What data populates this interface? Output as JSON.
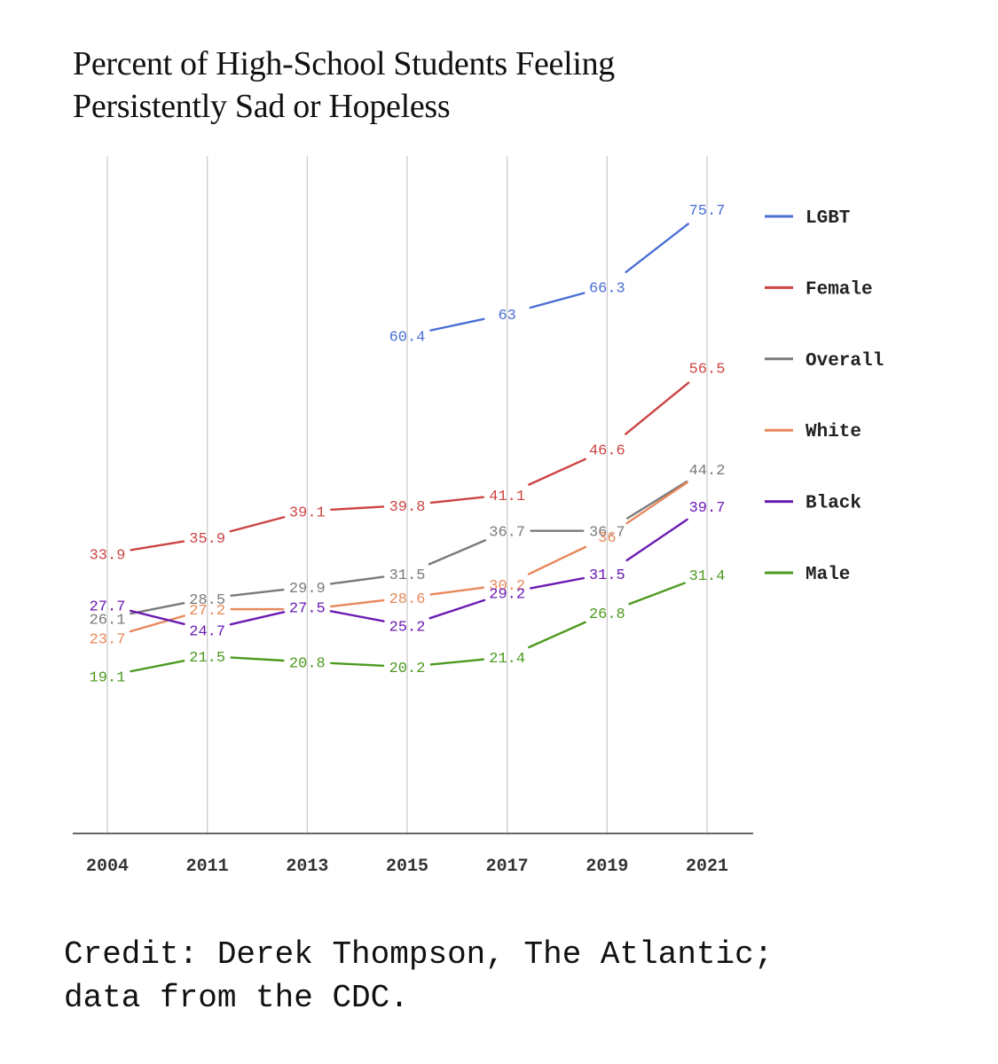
{
  "chart_data": {
    "type": "line",
    "title": [
      "Percent of High-School Students Feeling",
      "Persistently Sad or Hopeless"
    ],
    "xlabel": "",
    "ylabel": "",
    "categories": [
      "2004",
      "2011",
      "2013",
      "2015",
      "2017",
      "2019",
      "2021"
    ],
    "ylim": [
      0,
      80
    ],
    "grid": "vertical",
    "legend_position": "right",
    "series": [
      {
        "name": "LGBT",
        "color": "#4a6fd6",
        "values": [
          null,
          null,
          null,
          60.4,
          63,
          66.3,
          75.7
        ],
        "labels": [
          null,
          null,
          null,
          "60.4",
          "63",
          "66.3",
          "75.7"
        ]
      },
      {
        "name": "Female",
        "color": "#cc4444",
        "values": [
          33.9,
          35.9,
          39.1,
          39.8,
          41.1,
          46.6,
          56.5
        ],
        "labels": [
          "33.9",
          "35.9",
          "39.1",
          "39.8",
          "41.1",
          "46.6",
          "56.5"
        ]
      },
      {
        "name": "Overall",
        "color": "#7a7a7a",
        "values": [
          26.1,
          28.5,
          29.9,
          31.5,
          36.7,
          36.7,
          44.2
        ],
        "labels": [
          "26.1",
          "28.5",
          "29.9",
          "31.5",
          "36.7",
          "36.7",
          "44.2"
        ]
      },
      {
        "name": "White",
        "color": "#e8875a",
        "values": [
          23.7,
          27.2,
          27.2,
          28.6,
          30.2,
          36,
          44.2
        ],
        "labels": [
          "23.7",
          "27.2",
          null,
          "28.6",
          "30.2",
          "36",
          null
        ]
      },
      {
        "name": "Black",
        "color": "#6a1bb3",
        "values": [
          27.7,
          24.7,
          27.5,
          25.2,
          29.2,
          31.5,
          39.7
        ],
        "labels": [
          "27.7",
          "24.7",
          "27.5",
          "25.2",
          "29.2",
          "31.5",
          "39.7"
        ]
      },
      {
        "name": "Male",
        "color": "#4d9a1f",
        "values": [
          19.1,
          21.5,
          20.8,
          20.2,
          21.4,
          26.8,
          31.4
        ],
        "labels": [
          "19.1",
          "21.5",
          "20.8",
          "20.2",
          "21.4",
          "26.8",
          "31.4"
        ]
      }
    ]
  },
  "credit": [
    "Credit: Derek Thompson, The Atlantic;",
    "data from the CDC."
  ]
}
